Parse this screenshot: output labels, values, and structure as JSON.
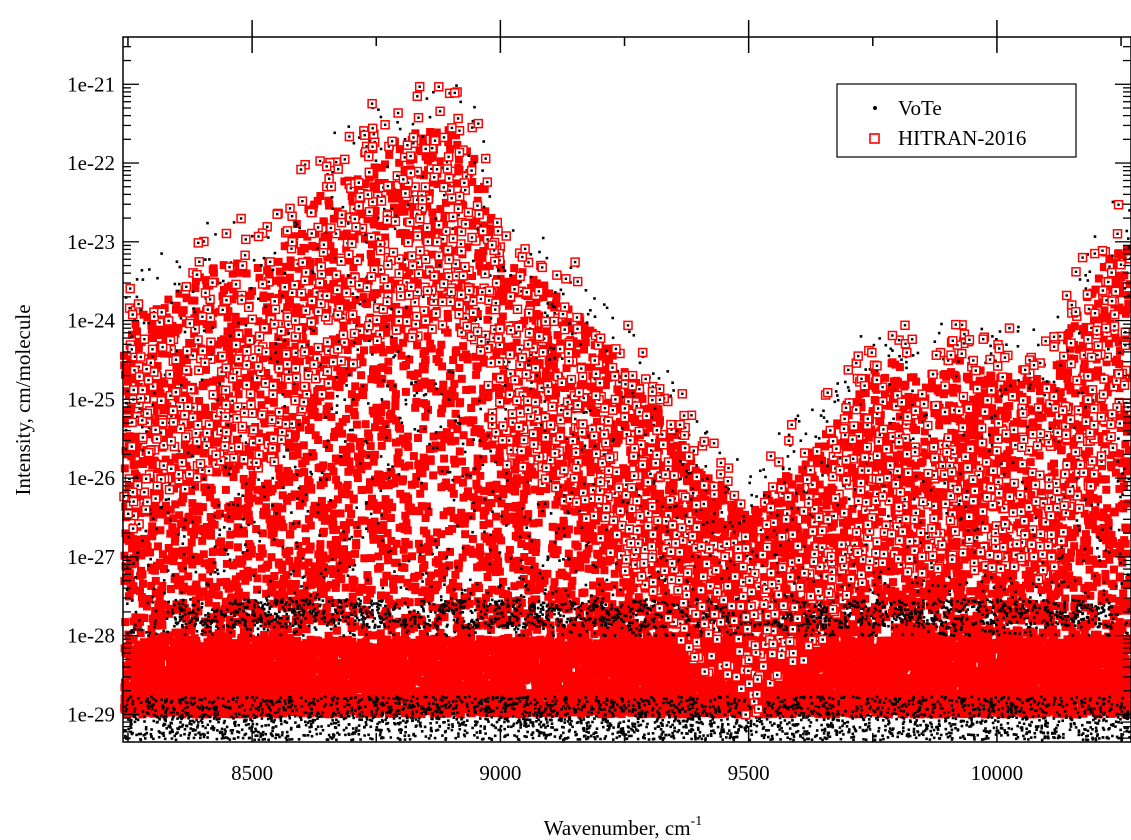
{
  "chart_data": {
    "type": "scatter",
    "title": "",
    "xlabel": "Wavenumber, cm",
    "xlabel_superscript": "-1",
    "ylabel": "Intensity, cm/molecule",
    "xlim": [
      8240,
      10270
    ],
    "ylim_log10": [
      -29.35,
      -20.4
    ],
    "yscale": "log",
    "grid": false,
    "legend_position": "top-right",
    "x_ticks": [
      8500,
      9000,
      9500,
      10000
    ],
    "x_tick_labels": [
      "8500",
      "9000",
      "9500",
      "10000"
    ],
    "y_ticks": [
      1e-29,
      1e-28,
      1e-27,
      1e-26,
      1e-25,
      1e-24,
      1e-23,
      1e-22,
      1e-21
    ],
    "y_tick_labels": [
      "1e-29",
      "1e-28",
      "1e-27",
      "1e-26",
      "1e-25",
      "1e-24",
      "1e-23",
      "1e-22",
      "1e-21"
    ],
    "series": [
      {
        "name": "VoTe",
        "marker": "dot",
        "color": "#000000",
        "note_data": "dense line list; dark floor bands near 1e-29 and 2e-28"
      },
      {
        "name": "HITRAN-2016",
        "marker": "open-square",
        "color": "#ff0000"
      }
    ],
    "envelope_upper_log10": {
      "x": [
        8240,
        8300,
        8400,
        8450,
        8500,
        8550,
        8600,
        8650,
        8700,
        8750,
        8800,
        8850,
        8900,
        8950,
        9000,
        9050,
        9100,
        9150,
        9200,
        9250,
        9300,
        9350,
        9400,
        9450,
        9500,
        9550,
        9600,
        9650,
        9700,
        9750,
        9800,
        9850,
        9900,
        9950,
        10000,
        10050,
        10100,
        10150,
        10200,
        10250,
        10270
      ],
      "y": [
        -23.6,
        -23.2,
        -22.8,
        -22.6,
        -22.7,
        -22.6,
        -22.0,
        -21.7,
        -21.4,
        -21.1,
        -21.1,
        -20.95,
        -20.95,
        -21.2,
        -22.6,
        -22.8,
        -23.0,
        -23.2,
        -23.6,
        -24.0,
        -24.4,
        -24.7,
        -25.3,
        -25.5,
        -25.9,
        -25.5,
        -25.2,
        -24.9,
        -24.4,
        -24.0,
        -23.9,
        -24.2,
        -23.8,
        -24.0,
        -24.1,
        -24.0,
        -24.2,
        -23.4,
        -22.8,
        -22.3,
        -22.2
      ]
    }
  },
  "legend": {
    "items": [
      {
        "label": "VoTe",
        "marker": "dot",
        "color": "#000000"
      },
      {
        "label": "HITRAN-2016",
        "marker": "open-square",
        "color": "#ff0000"
      }
    ]
  }
}
